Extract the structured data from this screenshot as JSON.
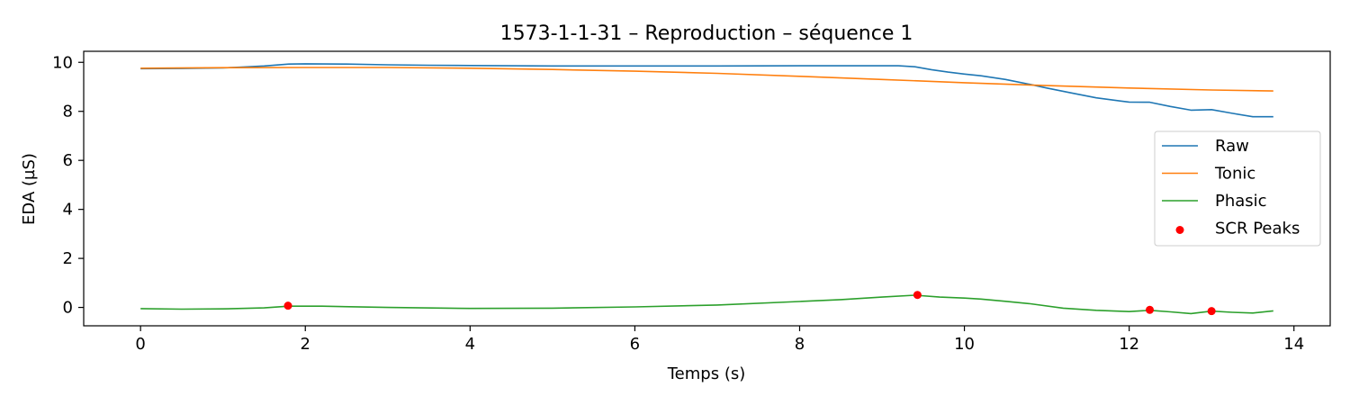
{
  "chart_data": {
    "type": "line",
    "title": "1573-1-1-31 – Reproduction – séquence 1",
    "xlabel": "Temps (s)",
    "ylabel": "EDA (µS)",
    "xlim": [
      -0.69,
      14.44
    ],
    "ylim": [
      -0.75,
      10.45
    ],
    "xticks": [
      0,
      2,
      4,
      6,
      8,
      10,
      12,
      14
    ],
    "xtick_labels": [
      "0",
      "2",
      "4",
      "6",
      "8",
      "10",
      "12",
      "14"
    ],
    "yticks": [
      0,
      2,
      4,
      6,
      8,
      10
    ],
    "ytick_labels": [
      "0",
      "2",
      "4",
      "6",
      "8",
      "10"
    ],
    "grid": false,
    "legend_position": "center-right",
    "series": [
      {
        "name": "Raw",
        "color": "#1f77b4",
        "kind": "line",
        "x": [
          0,
          0.5,
          1.0,
          1.2,
          1.5,
          1.8,
          2.0,
          2.5,
          3.0,
          3.5,
          4.0,
          4.5,
          5.0,
          6.0,
          7.0,
          8.0,
          9.0,
          9.2,
          9.4,
          9.6,
          9.8,
          10.0,
          10.2,
          10.5,
          10.8,
          11.0,
          11.3,
          11.6,
          11.9,
          12.0,
          12.25,
          12.5,
          12.75,
          13.0,
          13.25,
          13.5,
          13.75
        ],
        "y": [
          9.74,
          9.75,
          9.77,
          9.8,
          9.85,
          9.93,
          9.94,
          9.93,
          9.9,
          9.88,
          9.87,
          9.86,
          9.85,
          9.85,
          9.85,
          9.86,
          9.86,
          9.86,
          9.82,
          9.7,
          9.6,
          9.52,
          9.45,
          9.3,
          9.1,
          8.95,
          8.75,
          8.55,
          8.42,
          8.38,
          8.37,
          8.2,
          8.05,
          8.07,
          7.92,
          7.78,
          7.78
        ]
      },
      {
        "name": "Tonic",
        "color": "#ff7f0e",
        "kind": "line",
        "x": [
          0,
          1.0,
          2.0,
          3.0,
          4.0,
          5.0,
          6.0,
          7.0,
          8.0,
          9.0,
          10.0,
          11.0,
          12.0,
          13.0,
          13.75
        ],
        "y": [
          9.76,
          9.78,
          9.79,
          9.79,
          9.76,
          9.71,
          9.64,
          9.55,
          9.43,
          9.3,
          9.17,
          9.05,
          8.95,
          8.87,
          8.83
        ]
      },
      {
        "name": "Phasic",
        "color": "#2ca02c",
        "kind": "line",
        "x": [
          0,
          0.5,
          1.0,
          1.5,
          1.8,
          2.2,
          3.0,
          4.0,
          5.0,
          6.0,
          7.0,
          8.0,
          8.5,
          9.0,
          9.4,
          9.7,
          10.0,
          10.2,
          10.5,
          10.8,
          11.2,
          11.6,
          12.0,
          12.25,
          12.5,
          12.75,
          13.0,
          13.25,
          13.5,
          13.75
        ],
        "y": [
          -0.05,
          -0.07,
          -0.06,
          -0.02,
          0.05,
          0.05,
          0.0,
          -0.04,
          -0.03,
          0.02,
          0.1,
          0.24,
          0.32,
          0.42,
          0.5,
          0.42,
          0.38,
          0.34,
          0.25,
          0.15,
          -0.03,
          -0.12,
          -0.17,
          -0.12,
          -0.18,
          -0.25,
          -0.15,
          -0.2,
          -0.23,
          -0.14
        ]
      },
      {
        "name": "SCR Peaks",
        "color": "#ff0000",
        "kind": "scatter",
        "x": [
          1.79,
          9.43,
          12.25,
          13.0
        ],
        "y": [
          0.07,
          0.51,
          -0.1,
          -0.15
        ]
      }
    ]
  }
}
